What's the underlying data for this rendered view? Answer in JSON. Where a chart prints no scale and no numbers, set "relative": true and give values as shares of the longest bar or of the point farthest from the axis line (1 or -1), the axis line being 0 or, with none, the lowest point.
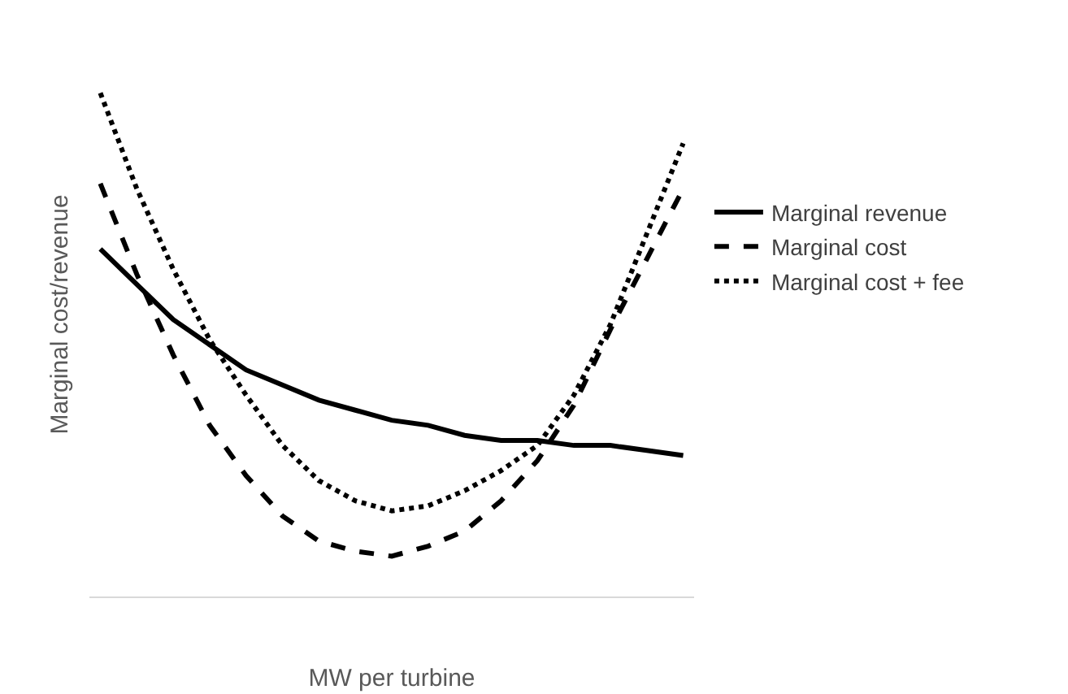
{
  "chart_data": {
    "type": "line",
    "relative": true,
    "xlabel": "MW per turbine",
    "ylabel": "Marginal cost/revenue",
    "categories": [
      null,
      null,
      null,
      null,
      null,
      null,
      null,
      null,
      null,
      null,
      null,
      null,
      null,
      null,
      null,
      null,
      null
    ],
    "series": [
      {
        "name": "Marginal revenue",
        "color": "#000000",
        "line_style": "solid",
        "values": [
          0.69,
          0.62,
          0.55,
          0.5,
          0.45,
          0.42,
          0.39,
          0.37,
          0.35,
          0.34,
          0.32,
          0.31,
          0.31,
          0.3,
          0.3,
          0.29,
          0.28
        ]
      },
      {
        "name": "Marginal cost",
        "color": "#000000",
        "line_style": "dashed",
        "values": [
          0.82,
          0.64,
          0.48,
          0.34,
          0.24,
          0.16,
          0.11,
          0.09,
          0.08,
          0.1,
          0.13,
          0.19,
          0.27,
          0.38,
          0.53,
          0.67,
          0.81
        ]
      },
      {
        "name": "Marginal cost + fee",
        "color": "#000000",
        "line_style": "dotted",
        "values": [
          1,
          0.81,
          0.65,
          0.51,
          0.4,
          0.3,
          0.23,
          0.19,
          0.17,
          0.18,
          0.21,
          0.25,
          0.3,
          0.4,
          0.54,
          0.72,
          0.9
        ]
      }
    ],
    "legend": "right",
    "marker": "none"
  }
}
